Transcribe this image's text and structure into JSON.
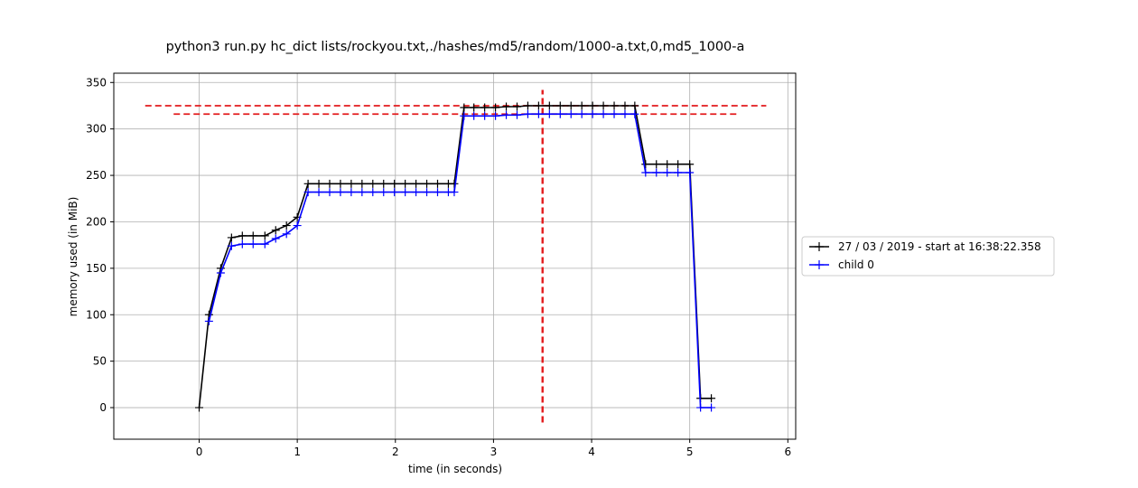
{
  "chart_data": {
    "type": "line",
    "title": "python3 run.py hc_dict lists/rockyou.txt,./hashes/md5/random/1000-a.txt,0,md5_1000-a",
    "xlabel": "time (in seconds)",
    "ylabel": "memory used (in MiB)",
    "xlim": [
      -0.87,
      6.08
    ],
    "ylim": [
      -34,
      360
    ],
    "xticks": [
      0,
      1,
      2,
      3,
      4,
      5,
      6
    ],
    "yticks": [
      0,
      50,
      100,
      150,
      200,
      250,
      300,
      350
    ],
    "grid": true,
    "legend_position": "center-right-outside",
    "series": [
      {
        "name": "27 / 03 / 2019 - start at 16:38:22.358",
        "color": "#000000",
        "marker": "+",
        "x": [
          0.0,
          0.1,
          0.22,
          0.33,
          0.44,
          0.55,
          0.67,
          0.78,
          0.89,
          1.0,
          1.11,
          1.22,
          1.33,
          1.44,
          1.55,
          1.66,
          1.77,
          1.88,
          1.99,
          2.1,
          2.21,
          2.32,
          2.43,
          2.54,
          2.6,
          2.7,
          2.8,
          2.91,
          3.02,
          3.13,
          3.24,
          3.35,
          3.46,
          3.57,
          3.68,
          3.79,
          3.9,
          4.01,
          4.12,
          4.23,
          4.34,
          4.44,
          4.55,
          4.66,
          4.77,
          4.88,
          5.0,
          5.11,
          5.22
        ],
        "values": [
          0,
          100,
          150,
          183,
          185,
          185,
          185,
          191,
          196,
          205,
          241,
          241,
          241,
          241,
          241,
          241,
          241,
          241,
          241,
          241,
          241,
          241,
          241,
          241,
          241,
          323,
          323,
          323,
          323,
          324,
          324,
          325,
          325,
          325,
          325,
          325,
          325,
          325,
          325,
          325,
          325,
          325,
          262,
          262,
          262,
          262,
          262,
          10,
          10
        ]
      },
      {
        "name": "child 0",
        "color": "#0000ff",
        "marker": "+",
        "x": [
          0.1,
          0.22,
          0.33,
          0.44,
          0.55,
          0.67,
          0.78,
          0.89,
          1.0,
          1.11,
          1.22,
          1.33,
          1.44,
          1.55,
          1.66,
          1.77,
          1.88,
          1.99,
          2.1,
          2.21,
          2.32,
          2.43,
          2.54,
          2.6,
          2.7,
          2.8,
          2.91,
          3.02,
          3.13,
          3.24,
          3.35,
          3.46,
          3.57,
          3.68,
          3.79,
          3.9,
          4.01,
          4.12,
          4.23,
          4.34,
          4.44,
          4.55,
          4.66,
          4.77,
          4.88,
          5.0,
          5.11,
          5.22
        ],
        "values": [
          93,
          145,
          174,
          176,
          176,
          176,
          182,
          187,
          196,
          232,
          232,
          232,
          232,
          232,
          232,
          232,
          232,
          232,
          232,
          232,
          232,
          232,
          232,
          232,
          314,
          314,
          314,
          314,
          315,
          315,
          316,
          316,
          316,
          316,
          316,
          316,
          316,
          316,
          316,
          316,
          316,
          253,
          253,
          253,
          253,
          253,
          0,
          0
        ]
      }
    ],
    "reference_lines": [
      {
        "orientation": "horizontal",
        "y": 325,
        "x_from": -0.55,
        "x_to": 5.78,
        "color": "#e31a1c",
        "style": "dashed"
      },
      {
        "orientation": "horizontal",
        "y": 316,
        "x_from": -0.26,
        "x_to": 5.48,
        "color": "#e31a1c",
        "style": "dashed"
      },
      {
        "orientation": "vertical",
        "x": 3.5,
        "y_from": -16,
        "y_to": 342,
        "color": "#e31a1c",
        "style": "dashed"
      }
    ]
  }
}
